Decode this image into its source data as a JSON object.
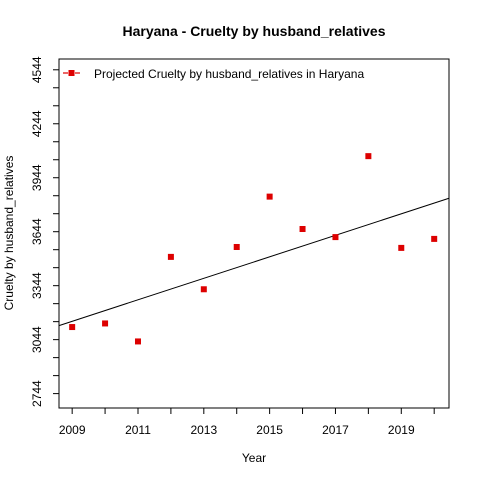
{
  "chart_data": {
    "type": "scatter",
    "title": "Haryana  -  Cruelty by husband_relatives",
    "xlabel": "Year",
    "ylabel": "Cruelty by husband_relatives",
    "xlim": [
      2008.6,
      2020.45
    ],
    "ylim": [
      2664,
      4604
    ],
    "x_ticks": [
      2009,
      2010,
      2011,
      2012,
      2013,
      2014,
      2015,
      2016,
      2017,
      2018,
      2019,
      2020
    ],
    "x_tick_labels": [
      "2009",
      "",
      "2011",
      "",
      "2013",
      "",
      "2015",
      "",
      "2017",
      "",
      "2019",
      ""
    ],
    "y_ticks": [
      2744,
      2844,
      2944,
      3044,
      3144,
      3244,
      3344,
      3444,
      3544,
      3644,
      3744,
      3844,
      3944,
      4044,
      4144,
      4244,
      4344,
      4444,
      4544
    ],
    "y_tick_labels": [
      "2744",
      "",
      "",
      "3044",
      "",
      "",
      "3344",
      "",
      "",
      "3644",
      "",
      "",
      "3944",
      "",
      "",
      "4244",
      "",
      "",
      "4544"
    ],
    "legend": {
      "position": "top-left",
      "label": "Projected  Cruelty by husband_relatives  in  Haryana"
    },
    "colors": {
      "points": "#dd0000",
      "trend": "#000000"
    },
    "grid": false,
    "series": [
      {
        "name": "Projected  Cruelty by husband_relatives  in  Haryana",
        "x": [
          2009,
          2010,
          2011,
          2012,
          2013,
          2014,
          2015,
          2016,
          2017,
          2018,
          2019,
          2020
        ],
        "values": [
          3114,
          3134,
          3034,
          3504,
          3324,
          3559,
          3839,
          3659,
          3614,
          4064,
          3554,
          3604
        ]
      }
    ],
    "trendline": {
      "x": [
        2008.6,
        2020.45
      ],
      "y": [
        3122,
        3830
      ]
    }
  }
}
